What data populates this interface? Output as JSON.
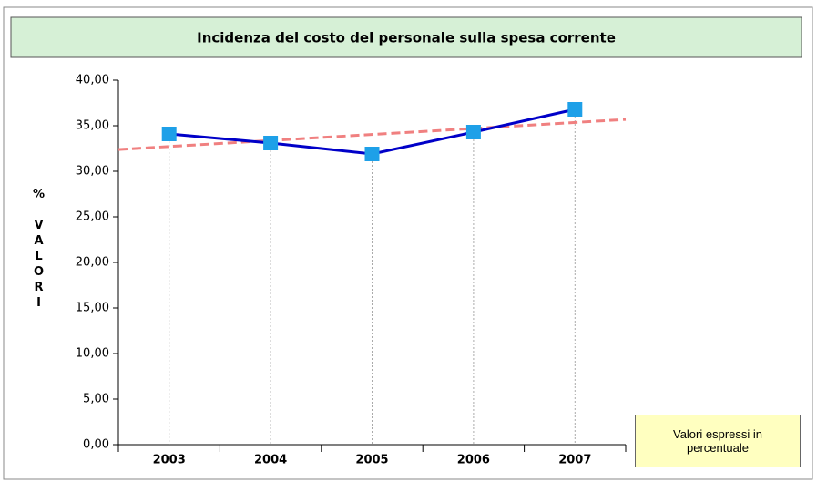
{
  "chart_data": {
    "type": "line",
    "title": "Incidenza del costo del personale sulla spesa corrente",
    "y_label": "% VALORI",
    "note": "Valori espressi in percentuale",
    "categories": [
      "2003",
      "2004",
      "2005",
      "2006",
      "2007"
    ],
    "series": [
      {
        "color": "#0000c8",
        "marker_color": "#1ea0e8",
        "values": [
          34.1,
          33.1,
          31.9,
          34.3,
          36.8
        ]
      }
    ],
    "ylim": [
      0,
      40
    ],
    "yticks": [
      {
        "value": 0,
        "label": "0,00"
      },
      {
        "value": 5,
        "label": "5,00"
      },
      {
        "value": 10,
        "label": "10,00"
      },
      {
        "value": 15,
        "label": "15,00"
      },
      {
        "value": 20,
        "label": "20,00"
      },
      {
        "value": 25,
        "label": "25,00"
      },
      {
        "value": 30,
        "label": "30,00"
      },
      {
        "value": 35,
        "label": "35,00"
      },
      {
        "value": 40,
        "label": "40,00"
      }
    ],
    "trendline": true,
    "trend_color": "#f08080",
    "drop_lines": true
  }
}
